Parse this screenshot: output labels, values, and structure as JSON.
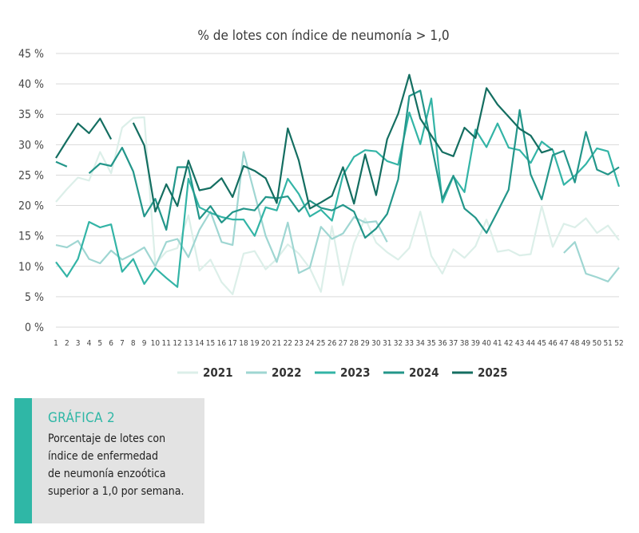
{
  "chart_data": {
    "type": "line",
    "title": "% de lotes con índice de neumonía > 1,0",
    "xlabel": "",
    "ylabel": "",
    "x": [
      1,
      2,
      3,
      4,
      5,
      6,
      7,
      8,
      9,
      10,
      11,
      12,
      13,
      14,
      15,
      16,
      17,
      18,
      19,
      20,
      21,
      22,
      23,
      24,
      25,
      26,
      27,
      28,
      29,
      30,
      31,
      32,
      33,
      34,
      35,
      36,
      37,
      38,
      39,
      40,
      41,
      42,
      43,
      44,
      45,
      46,
      47,
      48,
      49,
      50,
      51,
      52
    ],
    "x_tick_labels": [
      "1",
      "2",
      "3",
      "4",
      "5",
      "6",
      "7",
      "8",
      "9",
      "10",
      "11",
      "12",
      "13",
      "14",
      "15",
      "16",
      "17",
      "18",
      "19",
      "20",
      "21",
      "22",
      "23",
      "24",
      "25",
      "26",
      "27",
      "28",
      "29",
      "30",
      "31",
      "32",
      "33",
      "34",
      "35",
      "36",
      "37",
      "38",
      "39",
      "40",
      "41",
      "42",
      "43",
      "44",
      "45",
      "46",
      "47",
      "48",
      "49",
      "50",
      "51",
      "52"
    ],
    "y_ticks": [
      0,
      5,
      10,
      15,
      20,
      25,
      30,
      35,
      40,
      45
    ],
    "y_tick_labels": [
      "0 %",
      "5 %",
      "10 %",
      "15 %",
      "20 %",
      "25 %",
      "30 %",
      "35 %",
      "40 %",
      "45 %"
    ],
    "ylim": [
      0,
      45
    ],
    "grid": "horizontal",
    "legend_position": "bottom",
    "series": [
      {
        "name": "2021",
        "color": "#dcefe9",
        "values": [
          20.6,
          22.7,
          24.6,
          24.1,
          28.8,
          25.3,
          32.8,
          34.4,
          34.5,
          10.4,
          12.4,
          13.0,
          18.4,
          9.3,
          11.1,
          7.4,
          5.4,
          12.1,
          12.5,
          9.5,
          11.2,
          13.6,
          12.1,
          9.7,
          5.8,
          16.6,
          6.9,
          13.8,
          17.9,
          13.9,
          12.3,
          11.1,
          13.0,
          19.0,
          11.7,
          8.8,
          12.8,
          11.4,
          13.3,
          17.7,
          12.4,
          12.7,
          11.8,
          12.0,
          19.9,
          13.2,
          17.0,
          16.4,
          17.9,
          15.5,
          16.7,
          14.3
        ]
      },
      {
        "name": "2022",
        "color": "#9fd6d2",
        "values": [
          13.5,
          13.1,
          14.2,
          11.2,
          10.5,
          12.6,
          11.1,
          12.0,
          13.1,
          10.0,
          14.0,
          14.5,
          11.5,
          16.0,
          19.0,
          14.0,
          13.5,
          28.8,
          21.9,
          15.0,
          10.7,
          17.2,
          8.9,
          9.8,
          16.5,
          14.5,
          15.4,
          18.1,
          17.2,
          17.4,
          14.0,
          null,
          null,
          null,
          null,
          null,
          null,
          null,
          null,
          null,
          null,
          null,
          null,
          null,
          null,
          null,
          12.2,
          14.0,
          8.8,
          8.2,
          7.5,
          9.8
        ]
      },
      {
        "name": "2023",
        "color": "#33b4a6",
        "values": [
          10.7,
          8.3,
          11.2,
          17.3,
          16.4,
          16.9,
          9.1,
          11.2,
          7.1,
          9.7,
          8.1,
          6.6,
          24.4,
          19.7,
          18.8,
          18.1,
          17.7,
          17.7,
          15.0,
          19.7,
          19.2,
          24.4,
          21.9,
          18.2,
          19.3,
          17.5,
          25.0,
          28.0,
          29.1,
          28.9,
          27.3,
          26.7,
          35.3,
          30.1,
          37.6,
          20.5,
          24.8,
          22.2,
          32.5,
          29.6,
          33.5,
          29.5,
          29.1,
          27.0,
          30.5,
          29.1,
          23.4,
          24.9,
          26.8,
          29.4,
          28.9,
          23.1
        ]
      },
      {
        "name": "2024",
        "color": "#23968a",
        "values": [
          27.2,
          26.4,
          null,
          25.3,
          26.9,
          26.5,
          29.5,
          25.6,
          18.2,
          21.1,
          16.0,
          26.3,
          26.3,
          17.8,
          19.9,
          17.2,
          18.9,
          19.5,
          19.2,
          21.4,
          21.2,
          21.5,
          19.0,
          20.8,
          19.6,
          19.2,
          20.1,
          19.0,
          14.7,
          16.2,
          18.6,
          24.3,
          38.0,
          38.9,
          30.1,
          21.1,
          24.9,
          19.5,
          18.0,
          15.5,
          19.0,
          22.6,
          35.7,
          25.1,
          21.0,
          28.3,
          29.0,
          23.8,
          32.1,
          25.9,
          25.1,
          26.3
        ]
      },
      {
        "name": "2025",
        "color": "#146e61",
        "values": [
          27.8,
          30.7,
          33.5,
          31.9,
          34.3,
          30.9,
          null,
          33.6,
          29.9,
          19.0,
          23.5,
          19.9,
          27.4,
          22.5,
          22.9,
          24.5,
          21.4,
          26.5,
          25.7,
          24.5,
          20.4,
          32.7,
          27.4,
          19.5,
          20.5,
          21.6,
          26.3,
          20.3,
          28.4,
          21.7,
          30.9,
          35.1,
          41.5,
          34.3,
          31.5,
          28.8,
          28.1,
          32.8,
          31.1,
          39.3,
          36.6,
          34.6,
          32.6,
          31.5,
          28.7,
          29.3,
          null,
          null,
          null,
          null,
          null,
          null
        ]
      }
    ]
  },
  "caption": {
    "heading": "GRÁFICA 2",
    "lines": [
      "Porcentaje de lotes con",
      "índice de enfermedad",
      "de neumonía enzoótica",
      "superior a 1,0 por semana."
    ]
  }
}
